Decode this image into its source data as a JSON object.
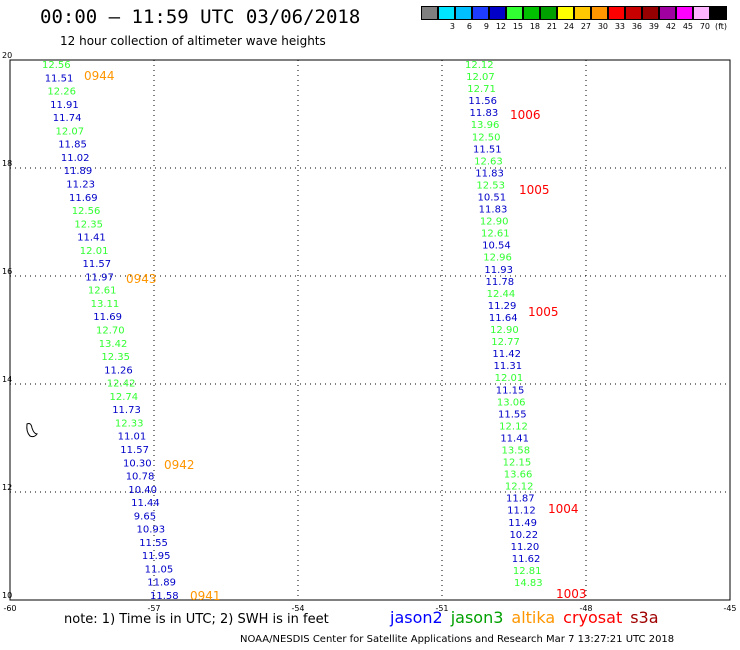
{
  "header": {
    "title": "00:00 – 11:59 UTC 03/06/2018",
    "subtitle": "12 hour collection of altimeter wave heights"
  },
  "color_legend": {
    "unit": "(ft)",
    "items": [
      {
        "label": "",
        "color": "#7f7f7f"
      },
      {
        "label": "3",
        "color": "#00e5ff"
      },
      {
        "label": "6",
        "color": "#00bfff"
      },
      {
        "label": "9",
        "color": "#1e3cff"
      },
      {
        "label": "12",
        "color": "#0000c8"
      },
      {
        "label": "15",
        "color": "#32ff32"
      },
      {
        "label": "18",
        "color": "#00c000"
      },
      {
        "label": "21",
        "color": "#00a000"
      },
      {
        "label": "24",
        "color": "#ffff00"
      },
      {
        "label": "27",
        "color": "#ffc800"
      },
      {
        "label": "30",
        "color": "#ff9600"
      },
      {
        "label": "33",
        "color": "#ff0000"
      },
      {
        "label": "36",
        "color": "#c80000"
      },
      {
        "label": "39",
        "color": "#960000"
      },
      {
        "label": "42",
        "color": "#a000a0"
      },
      {
        "label": "45",
        "color": "#ff00ff"
      },
      {
        "label": "70",
        "color": "#ffb4ff"
      },
      {
        "label": "",
        "color": "#000000"
      }
    ]
  },
  "map": {
    "lon_ticks": [
      "-60",
      "-57",
      "-54",
      "-51",
      "-48",
      "-45"
    ],
    "lat_ticks": [
      "20",
      "18",
      "16",
      "14",
      "12",
      "10"
    ],
    "colors": {
      "blue": "#0000c8",
      "green": "#32ff32",
      "orange": "#ff9600",
      "red": "#ff0000"
    },
    "left_track": [
      {
        "text": "12.56",
        "color": "green"
      },
      {
        "text": "11.51",
        "color": "blue"
      },
      {
        "text": "12.26",
        "color": "green"
      },
      {
        "text": "11.91",
        "color": "blue"
      },
      {
        "text": "11.74",
        "color": "blue"
      },
      {
        "text": "12.07",
        "color": "green"
      },
      {
        "text": "11.85",
        "color": "blue"
      },
      {
        "text": "11.02",
        "color": "blue"
      },
      {
        "text": "11.89",
        "color": "blue"
      },
      {
        "text": "11.23",
        "color": "blue"
      },
      {
        "text": "11.69",
        "color": "blue"
      },
      {
        "text": "12.56",
        "color": "green"
      },
      {
        "text": "12.35",
        "color": "green"
      },
      {
        "text": "11.41",
        "color": "blue"
      },
      {
        "text": "12.01",
        "color": "green"
      },
      {
        "text": "11.57",
        "color": "blue"
      },
      {
        "text": "11.97",
        "color": "blue"
      },
      {
        "text": "12.61",
        "color": "green"
      },
      {
        "text": "13.11",
        "color": "green"
      },
      {
        "text": "11.69",
        "color": "blue"
      },
      {
        "text": "12.70",
        "color": "green"
      },
      {
        "text": "13.42",
        "color": "green"
      },
      {
        "text": "12.35",
        "color": "green"
      },
      {
        "text": "11.26",
        "color": "blue"
      },
      {
        "text": "12.42",
        "color": "green"
      },
      {
        "text": "12.74",
        "color": "green"
      },
      {
        "text": "11.73",
        "color": "blue"
      },
      {
        "text": "12.33",
        "color": "green"
      },
      {
        "text": "11.01",
        "color": "blue"
      },
      {
        "text": "11.57",
        "color": "blue"
      },
      {
        "text": "10.30",
        "color": "blue"
      },
      {
        "text": "10.78",
        "color": "blue"
      },
      {
        "text": "10.40",
        "color": "blue"
      },
      {
        "text": "11.44",
        "color": "blue"
      },
      {
        "text": "9.65",
        "color": "blue"
      },
      {
        "text": "10.93",
        "color": "blue"
      },
      {
        "text": "11.55",
        "color": "blue"
      },
      {
        "text": "11.95",
        "color": "blue"
      },
      {
        "text": "11.05",
        "color": "blue"
      },
      {
        "text": "11.89",
        "color": "blue"
      },
      {
        "text": "11.58",
        "color": "blue"
      }
    ],
    "left_times": [
      {
        "text": "0944",
        "color": "orange"
      },
      {
        "text": "0943",
        "color": "orange"
      },
      {
        "text": "0942",
        "color": "orange"
      },
      {
        "text": "0941",
        "color": "orange"
      }
    ],
    "right_track": [
      {
        "text": "12.12",
        "color": "green"
      },
      {
        "text": "12.07",
        "color": "green"
      },
      {
        "text": "12.71",
        "color": "green"
      },
      {
        "text": "11.56",
        "color": "blue"
      },
      {
        "text": "11.83",
        "color": "blue"
      },
      {
        "text": "13.96",
        "color": "green"
      },
      {
        "text": "12.50",
        "color": "green"
      },
      {
        "text": "11.51",
        "color": "blue"
      },
      {
        "text": "12.63",
        "color": "green"
      },
      {
        "text": "11.83",
        "color": "blue"
      },
      {
        "text": "12.53",
        "color": "green"
      },
      {
        "text": "10.51",
        "color": "blue"
      },
      {
        "text": "11.83",
        "color": "blue"
      },
      {
        "text": "12.90",
        "color": "green"
      },
      {
        "text": "12.61",
        "color": "green"
      },
      {
        "text": "10.54",
        "color": "blue"
      },
      {
        "text": "12.96",
        "color": "green"
      },
      {
        "text": "11.93",
        "color": "blue"
      },
      {
        "text": "11.78",
        "color": "blue"
      },
      {
        "text": "12.44",
        "color": "green"
      },
      {
        "text": "11.29",
        "color": "blue"
      },
      {
        "text": "11.64",
        "color": "blue"
      },
      {
        "text": "12.90",
        "color": "green"
      },
      {
        "text": "12.77",
        "color": "green"
      },
      {
        "text": "11.42",
        "color": "blue"
      },
      {
        "text": "11.31",
        "color": "blue"
      },
      {
        "text": "12.01",
        "color": "green"
      },
      {
        "text": "11.15",
        "color": "blue"
      },
      {
        "text": "13.06",
        "color": "green"
      },
      {
        "text": "11.55",
        "color": "blue"
      },
      {
        "text": "12.12",
        "color": "green"
      },
      {
        "text": "11.41",
        "color": "blue"
      },
      {
        "text": "13.58",
        "color": "green"
      },
      {
        "text": "12.15",
        "color": "green"
      },
      {
        "text": "13.66",
        "color": "green"
      },
      {
        "text": "12.12",
        "color": "green"
      },
      {
        "text": "11.87",
        "color": "blue"
      },
      {
        "text": "11.12",
        "color": "blue"
      },
      {
        "text": "11.49",
        "color": "blue"
      },
      {
        "text": "10.22",
        "color": "blue"
      },
      {
        "text": "11.20",
        "color": "blue"
      },
      {
        "text": "11.62",
        "color": "blue"
      },
      {
        "text": "12.81",
        "color": "green"
      },
      {
        "text": "14.83",
        "color": "green"
      }
    ],
    "right_times": [
      {
        "text": "1006",
        "color": "red"
      },
      {
        "text": "1005",
        "color": "red"
      },
      {
        "text": "1005",
        "color": "red"
      },
      {
        "text": "1004",
        "color": "red"
      },
      {
        "text": "1003",
        "color": "red"
      }
    ]
  },
  "footer": {
    "note": "note:  1) Time is in UTC; 2) SWH is in feet",
    "satellites": [
      {
        "name": "jason2",
        "color": "#0000ff"
      },
      {
        "name": "jason3",
        "color": "#00a000"
      },
      {
        "name": "altika",
        "color": "#ff9600"
      },
      {
        "name": "cryosat",
        "color": "#ff0000"
      },
      {
        "name": "s3a",
        "color": "#a00000"
      }
    ],
    "credit": "NOAA/NESDIS Center for Satellite Applications and Research     Mar  7 13:27:21 UTC 2018"
  }
}
